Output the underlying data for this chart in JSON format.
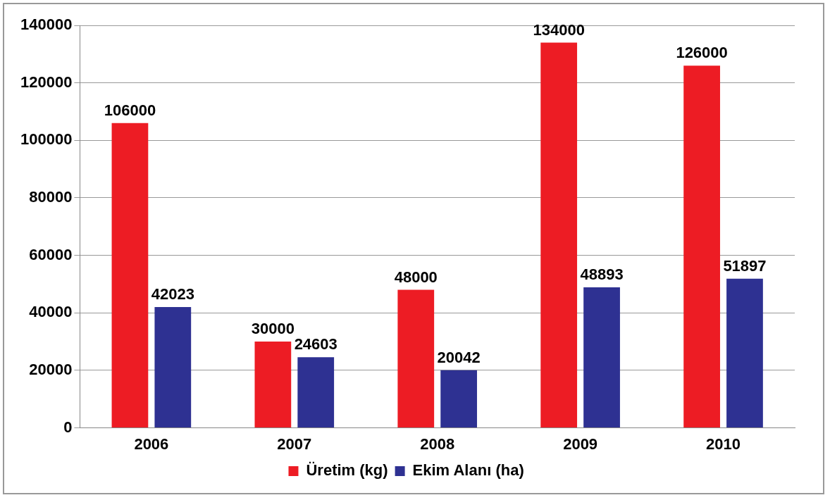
{
  "chart_data": {
    "type": "bar",
    "categories": [
      "2006",
      "2007",
      "2008",
      "2009",
      "2010"
    ],
    "series": [
      {
        "name": "Üretim (kg)",
        "color": "#ed1c24",
        "values": [
          106000,
          30000,
          48000,
          134000,
          126000
        ]
      },
      {
        "name": "Ekim Alanı (ha)",
        "color": "#2e3192",
        "values": [
          42023,
          24603,
          20042,
          48893,
          51897
        ]
      }
    ],
    "ylim": [
      0,
      140000
    ],
    "yticks": [
      0,
      20000,
      40000,
      60000,
      80000,
      100000,
      120000,
      140000
    ],
    "grid": "y",
    "legend": "bottom",
    "data_labels": true
  }
}
